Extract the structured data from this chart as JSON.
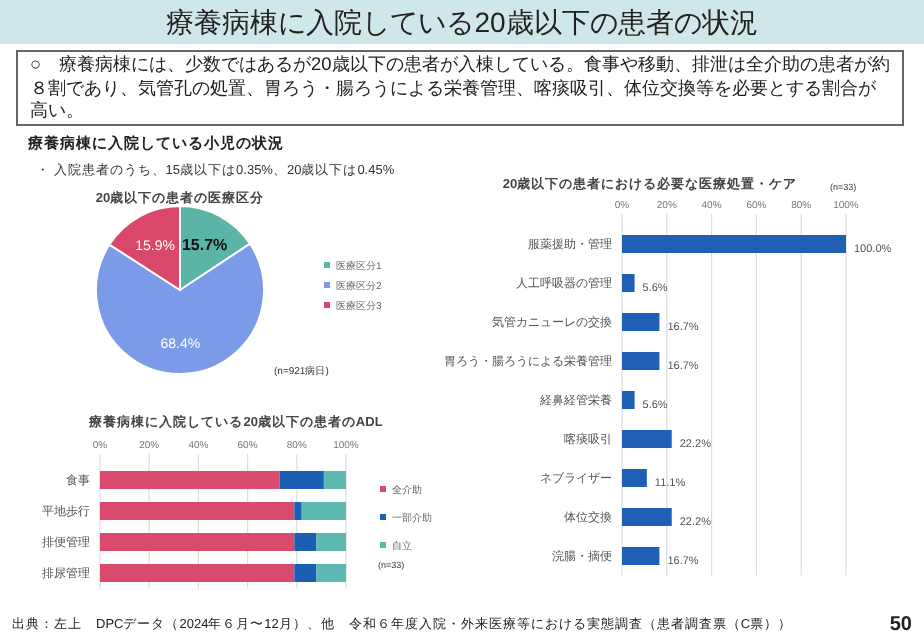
{
  "chart_data": [
    {
      "type": "other",
      "title": "療養病棟に入院している20歳以下の患者の状況",
      "annotations": [
        "○　療養病棟には、少数ではあるが20歳以下の患者が入棟している。食事や移動、排泄は全介助の患者が約８割であり、気管孔の処置、胃ろう・腸ろうによる栄養管理、喀痰吸引、体位交換等を必要とする割合が高い。",
        "療養病棟に入院している小児の状況",
        "・ 入院患者のうち、15歳以下は0.35%、20歳以下は0.45%",
        "出典：左上　DPCデータ（2024年６月〜12月）、他　令和６年度入院・外来医療等における実態調査（患者調査票（C票））",
        "50"
      ]
    },
    {
      "type": "pie",
      "title": "20歳以下の患者の医療区分",
      "categories": [
        "医療区分1",
        "医療区分2",
        "医療区分3"
      ],
      "values": [
        15.7,
        68.4,
        15.9
      ],
      "colors": [
        "#5bb5a6",
        "#7b9be8",
        "#d9486a"
      ],
      "value_labels": [
        "15.7%",
        "68.4%",
        "15.9%"
      ],
      "legend": "right",
      "annotations": [
        "(n=921病日)"
      ]
    },
    {
      "type": "bar",
      "orientation": "horizontal",
      "stacked": true,
      "title": "療養病棟に入院している20歳以下の患者のADL",
      "categories": [
        "食事",
        "平地歩行",
        "排便管理",
        "排尿管理"
      ],
      "series": [
        {
          "name": "全介助",
          "color": "#d94a6c",
          "values": [
            73,
            79,
            79,
            79
          ]
        },
        {
          "name": "一部介助",
          "color": "#1a5fb4",
          "values": [
            18,
            3,
            9,
            9
          ]
        },
        {
          "name": "自立",
          "color": "#5cb8b0",
          "values": [
            9,
            18,
            12,
            12
          ]
        }
      ],
      "xlim": [
        0,
        100
      ],
      "xticks": [
        {
          "value": 0,
          "label": "0%"
        },
        {
          "value": 20,
          "label": "20%"
        },
        {
          "value": 40,
          "label": "40%"
        },
        {
          "value": 60,
          "label": "60%"
        },
        {
          "value": 80,
          "label": "80%"
        },
        {
          "value": 100,
          "label": "100%"
        }
      ],
      "grid": "x",
      "legend": "right",
      "annotations": [
        "(n=33)"
      ]
    },
    {
      "type": "bar",
      "orientation": "horizontal",
      "title": "20歳以下の患者における必要な医療処置・ケア",
      "categories": [
        "服薬援助・管理",
        "人工呼吸器の管理",
        "気管カニューレの交換",
        "胃ろう・腸ろうによる栄養管理",
        "経鼻経管栄養",
        "喀痰吸引",
        "ネブライザー",
        "体位交換",
        "浣腸・摘便"
      ],
      "values": [
        100.0,
        5.6,
        16.7,
        16.7,
        5.6,
        22.2,
        11.1,
        22.2,
        16.7
      ],
      "color": "#1f5fb5",
      "value_labels": [
        "100.0%",
        "5.6%",
        "16.7%",
        "16.7%",
        "5.6%",
        "22.2%",
        "11.1%",
        "22.2%",
        "16.7%"
      ],
      "xlim": [
        0,
        100
      ],
      "xticks": [
        {
          "value": 0,
          "label": "0%"
        },
        {
          "value": 20,
          "label": "20%"
        },
        {
          "value": 40,
          "label": "40%"
        },
        {
          "value": 60,
          "label": "60%"
        },
        {
          "value": 80,
          "label": "80%"
        },
        {
          "value": 100,
          "label": "100%"
        }
      ],
      "grid": "x",
      "annotations": [
        "(n=33)"
      ]
    }
  ]
}
